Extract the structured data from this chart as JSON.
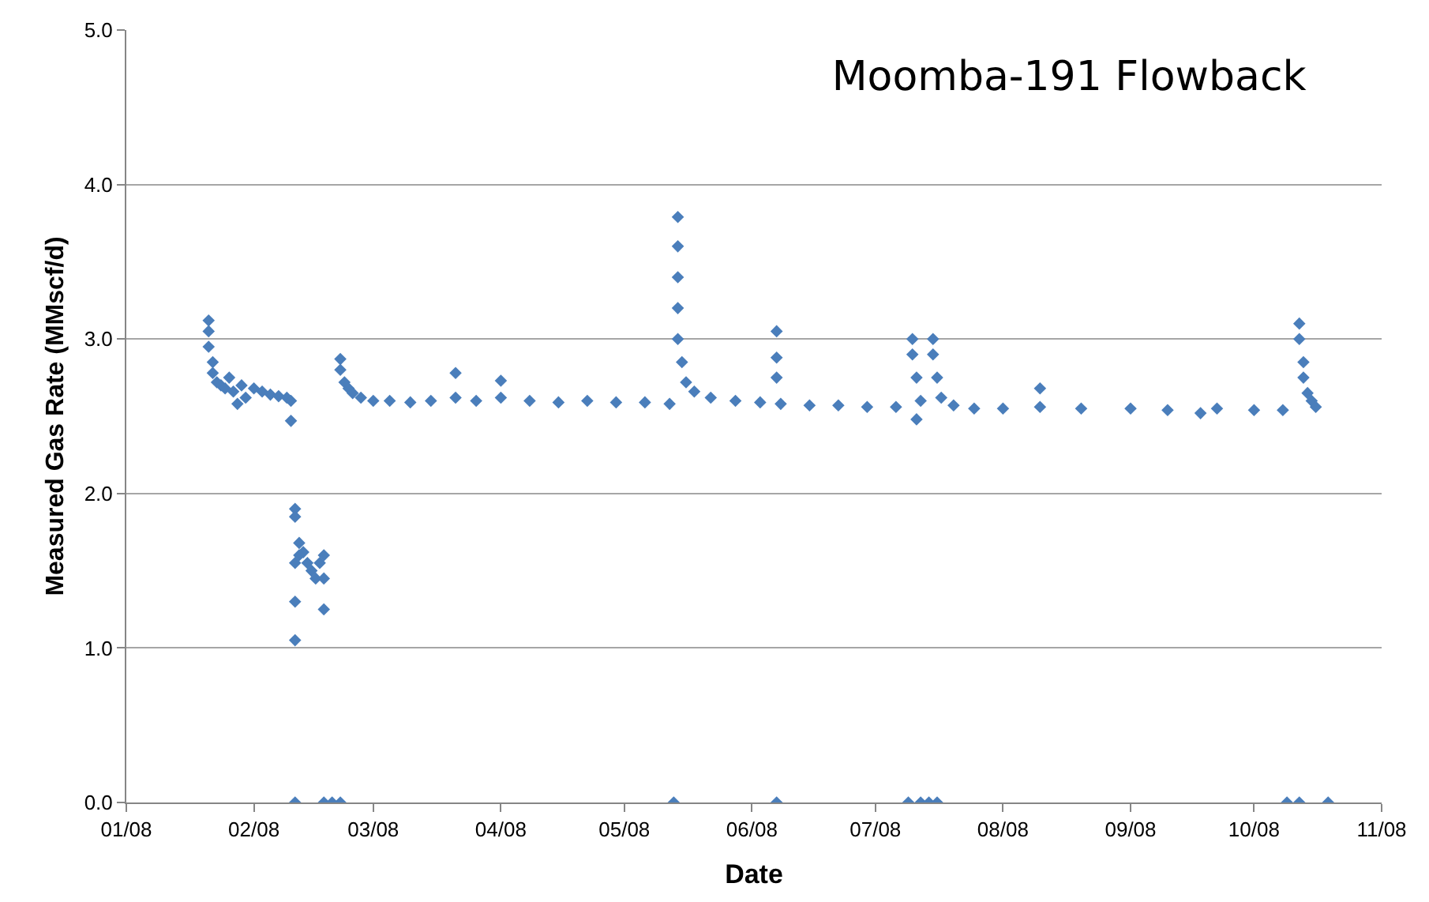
{
  "chart_data": {
    "type": "scatter",
    "title": "Moomba-191 Flowback",
    "xlabel": "Date",
    "ylabel": "Measured Gas Rate (MMscf/d)",
    "xlim": [
      "2008-01-01",
      "2008-11-01"
    ],
    "xticks": [
      {
        "value": "2008-01-01",
        "label": "01/08"
      },
      {
        "value": "2008-02-01",
        "label": "02/08"
      },
      {
        "value": "2008-03-01",
        "label": "03/08"
      },
      {
        "value": "2008-04-01",
        "label": "04/08"
      },
      {
        "value": "2008-05-01",
        "label": "05/08"
      },
      {
        "value": "2008-06-01",
        "label": "06/08"
      },
      {
        "value": "2008-07-01",
        "label": "07/08"
      },
      {
        "value": "2008-08-01",
        "label": "08/08"
      },
      {
        "value": "2008-09-01",
        "label": "09/08"
      },
      {
        "value": "2008-10-01",
        "label": "10/08"
      },
      {
        "value": "2008-11-01",
        "label": "11/08"
      }
    ],
    "ylim": [
      0,
      5
    ],
    "yticks": [
      {
        "value": 0,
        "label": "0.0"
      },
      {
        "value": 1,
        "label": "1.0"
      },
      {
        "value": 2,
        "label": "2.0"
      },
      {
        "value": 3,
        "label": "3.0"
      },
      {
        "value": 4,
        "label": "4.0"
      },
      {
        "value": 5,
        "label": "5.0"
      }
    ],
    "grid": "y",
    "marker": "diamond",
    "x": [
      "2008-01-21",
      "2008-01-21",
      "2008-01-21",
      "2008-01-22",
      "2008-01-22",
      "2008-01-23",
      "2008-01-24",
      "2008-01-25",
      "2008-01-26",
      "2008-01-27",
      "2008-01-28",
      "2008-01-29",
      "2008-01-30",
      "2008-02-01",
      "2008-02-03",
      "2008-02-05",
      "2008-02-07",
      "2008-02-09",
      "2008-02-10",
      "2008-02-10",
      "2008-02-11",
      "2008-02-11",
      "2008-02-11",
      "2008-02-11",
      "2008-02-11",
      "2008-02-11",
      "2008-02-12",
      "2008-02-12",
      "2008-02-13",
      "2008-02-14",
      "2008-02-15",
      "2008-02-16",
      "2008-02-17",
      "2008-02-18",
      "2008-02-18",
      "2008-02-18",
      "2008-02-18",
      "2008-02-20",
      "2008-02-22",
      "2008-02-22",
      "2008-02-22",
      "2008-02-23",
      "2008-02-24",
      "2008-02-25",
      "2008-02-27",
      "2008-03-01",
      "2008-03-05",
      "2008-03-10",
      "2008-03-15",
      "2008-03-21",
      "2008-03-21",
      "2008-03-26",
      "2008-04-01",
      "2008-04-01",
      "2008-04-08",
      "2008-04-15",
      "2008-04-22",
      "2008-04-29",
      "2008-05-06",
      "2008-05-12",
      "2008-05-13",
      "2008-05-14",
      "2008-05-14",
      "2008-05-14",
      "2008-05-14",
      "2008-05-14",
      "2008-05-15",
      "2008-05-16",
      "2008-05-18",
      "2008-05-22",
      "2008-05-28",
      "2008-06-03",
      "2008-06-07",
      "2008-06-07",
      "2008-06-07",
      "2008-06-07",
      "2008-06-08",
      "2008-06-15",
      "2008-06-22",
      "2008-06-29",
      "2008-07-06",
      "2008-07-09",
      "2008-07-10",
      "2008-07-10",
      "2008-07-11",
      "2008-07-11",
      "2008-07-12",
      "2008-07-12",
      "2008-07-14",
      "2008-07-15",
      "2008-07-15",
      "2008-07-16",
      "2008-07-16",
      "2008-07-17",
      "2008-07-20",
      "2008-07-25",
      "2008-08-01",
      "2008-08-10",
      "2008-08-10",
      "2008-08-20",
      "2008-09-01",
      "2008-09-10",
      "2008-09-18",
      "2008-09-22",
      "2008-10-01",
      "2008-10-08",
      "2008-10-09",
      "2008-10-12",
      "2008-10-12",
      "2008-10-12",
      "2008-10-13",
      "2008-10-13",
      "2008-10-14",
      "2008-10-15",
      "2008-10-16",
      "2008-10-19"
    ],
    "series": [
      {
        "color": "#4a7ebb",
        "values": [
          3.12,
          3.05,
          2.95,
          2.85,
          2.78,
          2.72,
          2.7,
          2.68,
          2.75,
          2.66,
          2.58,
          2.7,
          2.62,
          2.68,
          2.66,
          2.64,
          2.63,
          2.62,
          2.6,
          2.47,
          0.0,
          1.9,
          1.85,
          1.05,
          1.3,
          1.55,
          1.6,
          1.68,
          1.62,
          1.55,
          1.5,
          1.45,
          1.55,
          1.6,
          1.25,
          1.45,
          0.0,
          0.0,
          0.0,
          2.87,
          2.8,
          2.72,
          2.68,
          2.65,
          2.62,
          2.6,
          2.6,
          2.59,
          2.6,
          2.78,
          2.62,
          2.6,
          2.73,
          2.62,
          2.6,
          2.59,
          2.6,
          2.59,
          2.59,
          2.58,
          0.0,
          3.79,
          3.6,
          3.4,
          3.2,
          3.0,
          2.85,
          2.72,
          2.66,
          2.62,
          2.6,
          2.59,
          3.05,
          2.88,
          2.75,
          0.0,
          2.58,
          2.57,
          2.57,
          2.56,
          2.56,
          0.0,
          3.0,
          2.9,
          2.75,
          2.48,
          2.6,
          0.0,
          0.0,
          3.0,
          2.9,
          2.75,
          0.0,
          2.62,
          2.57,
          2.55,
          2.55,
          2.68,
          2.56,
          2.55,
          2.55,
          2.54,
          2.52,
          2.55,
          2.54,
          2.54,
          0.0,
          0.0,
          3.1,
          3.0,
          2.85,
          2.75,
          2.65,
          2.6,
          2.56,
          0.0
        ]
      }
    ]
  }
}
